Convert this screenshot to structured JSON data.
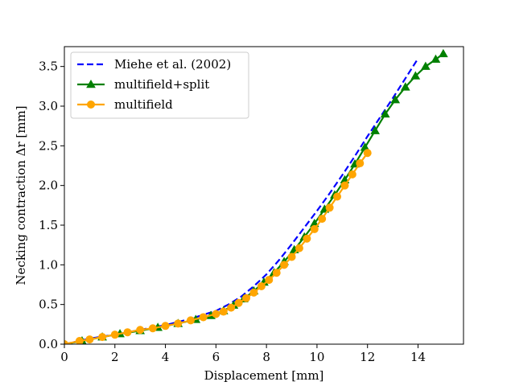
{
  "chart_data": {
    "type": "line",
    "title": "",
    "xlabel": "Displacement [mm]",
    "ylabel": "Necking contraction Δr [mm]",
    "xlim": [
      0,
      15.8
    ],
    "ylim": [
      0,
      3.75
    ],
    "x_ticks": [
      0,
      2,
      4,
      6,
      8,
      10,
      12,
      14
    ],
    "x_tick_labels": [
      "0",
      "2",
      "4",
      "6",
      "8",
      "10",
      "12",
      "14"
    ],
    "y_ticks": [
      0,
      0.5,
      1.0,
      1.5,
      2.0,
      2.5,
      3.0,
      3.5
    ],
    "y_tick_labels": [
      "0.0",
      "0.5",
      "1.0",
      "1.5",
      "2.0",
      "2.5",
      "3.0",
      "3.5"
    ],
    "grid": false,
    "legend_position": "top-left",
    "series": [
      {
        "name": "Miehe et al. (2002)",
        "color": "#0000ff",
        "line_style": "dashed",
        "marker": "none",
        "x": [
          0,
          1,
          2,
          3,
          4,
          5,
          6,
          6.5,
          7,
          7.5,
          8,
          8.5,
          9,
          9.5,
          10,
          10.5,
          11,
          11.5,
          12,
          12.5,
          13,
          13.5,
          14
        ],
        "y": [
          0,
          0.07,
          0.12,
          0.18,
          0.24,
          0.32,
          0.42,
          0.5,
          0.6,
          0.73,
          0.88,
          1.06,
          1.26,
          1.47,
          1.68,
          1.9,
          2.13,
          2.37,
          2.62,
          2.86,
          3.1,
          3.35,
          3.6
        ]
      },
      {
        "name": "multifield+split",
        "color": "#008000",
        "line_style": "solid",
        "marker": "triangle",
        "x": [
          0,
          0.7,
          1.5,
          2.2,
          3,
          3.7,
          4.5,
          5.2,
          5.8,
          6.3,
          6.7,
          7.1,
          7.5,
          7.9,
          8.3,
          8.7,
          9.1,
          9.5,
          9.9,
          10.3,
          10.7,
          11.1,
          11.5,
          11.9,
          12.3,
          12.7,
          13.1,
          13.5,
          13.9,
          14.3,
          14.7,
          15.0
        ],
        "y": [
          0,
          0.04,
          0.09,
          0.13,
          0.17,
          0.21,
          0.26,
          0.31,
          0.36,
          0.42,
          0.49,
          0.57,
          0.67,
          0.78,
          0.9,
          1.04,
          1.19,
          1.35,
          1.52,
          1.7,
          1.88,
          2.07,
          2.27,
          2.48,
          2.69,
          2.9,
          3.08,
          3.24,
          3.38,
          3.5,
          3.59,
          3.66
        ]
      },
      {
        "name": "multifield",
        "color": "#ffa500",
        "line_style": "solid",
        "marker": "circle",
        "x": [
          0,
          0.6,
          1.0,
          1.5,
          2.0,
          2.5,
          3.0,
          3.5,
          4.0,
          4.5,
          5.0,
          5.5,
          6.0,
          6.3,
          6.6,
          6.9,
          7.2,
          7.5,
          7.8,
          8.1,
          8.4,
          8.7,
          9.0,
          9.3,
          9.6,
          9.9,
          10.2,
          10.5,
          10.8,
          11.1,
          11.4,
          11.7,
          12.0
        ],
        "y": [
          0,
          0.04,
          0.06,
          0.09,
          0.12,
          0.15,
          0.18,
          0.2,
          0.23,
          0.26,
          0.3,
          0.34,
          0.38,
          0.41,
          0.46,
          0.52,
          0.58,
          0.65,
          0.73,
          0.81,
          0.9,
          1.0,
          1.1,
          1.21,
          1.33,
          1.45,
          1.58,
          1.72,
          1.86,
          2.0,
          2.14,
          2.28,
          2.41
        ]
      }
    ]
  }
}
